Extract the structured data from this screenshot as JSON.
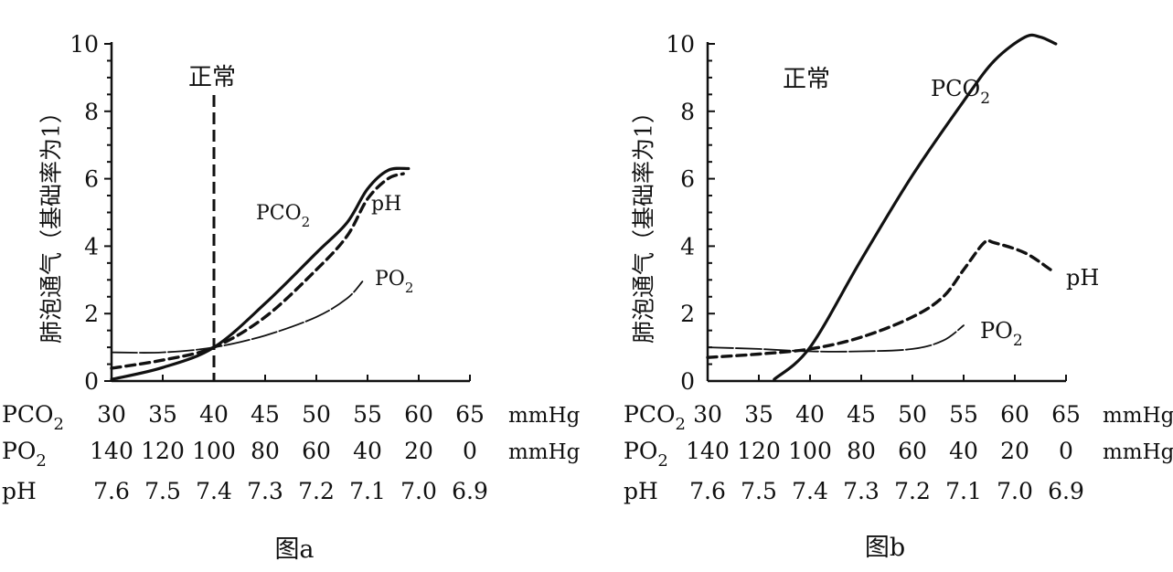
{
  "chart_data": [
    {
      "type": "line",
      "panel_label": "图a",
      "ylabel": "肺泡通气（基础率为1）",
      "ylim": [
        0,
        10
      ],
      "y_ticks": [
        "0",
        "2",
        "4",
        "6",
        "8",
        "10"
      ],
      "x_axis_pco2": {
        "label_main": "PCO",
        "label_sub": "2",
        "ticks": [
          "30",
          "35",
          "40",
          "45",
          "50",
          "55",
          "60",
          "65"
        ],
        "unit": "mmHg"
      },
      "x_axis_po2": {
        "label_main": "PO",
        "label_sub": "2",
        "ticks": [
          "140",
          "120",
          "100",
          "80",
          "60",
          "40",
          "20",
          "0"
        ],
        "unit": "mmHg"
      },
      "x_axis_ph": {
        "label": "pH",
        "ticks": [
          "7.6",
          "7.5",
          "7.4",
          "7.3",
          "7.2",
          "7.1",
          "7.0",
          "6.9"
        ]
      },
      "normal_line": {
        "label": "正常",
        "x_pco2": 40
      },
      "series": [
        {
          "name_main": "PCO",
          "name_sub": "2",
          "style": "solid",
          "points": [
            [
              30,
              0.05
            ],
            [
              35,
              0.4
            ],
            [
              40,
              1.0
            ],
            [
              45,
              2.3
            ],
            [
              50,
              3.8
            ],
            [
              53,
              4.7
            ],
            [
              55,
              5.7
            ],
            [
              57,
              6.25
            ],
            [
              59,
              6.3
            ]
          ]
        },
        {
          "name": "pH",
          "style": "dashed",
          "points": [
            [
              30,
              0.38
            ],
            [
              35,
              0.62
            ],
            [
              40,
              1.0
            ],
            [
              45,
              1.9
            ],
            [
              50,
              3.3
            ],
            [
              53,
              4.3
            ],
            [
              55,
              5.4
            ],
            [
              57,
              6.0
            ],
            [
              58.5,
              6.15
            ]
          ]
        },
        {
          "name_main": "PO",
          "name_sub": "2",
          "style": "thin",
          "points": [
            [
              30,
              0.85
            ],
            [
              35,
              0.85
            ],
            [
              40,
              1.0
            ],
            [
              45,
              1.35
            ],
            [
              50,
              1.9
            ],
            [
              53,
              2.45
            ],
            [
              54.5,
              2.95
            ]
          ]
        }
      ]
    },
    {
      "type": "line",
      "panel_label": "图b",
      "ylabel": "肺泡通气（基础率为1）",
      "ylim": [
        0,
        10
      ],
      "y_ticks": [
        "0",
        "2",
        "4",
        "6",
        "8",
        "10"
      ],
      "x_axis_pco2": {
        "label_main": "PCO",
        "label_sub": "2",
        "ticks": [
          "30",
          "35",
          "40",
          "45",
          "50",
          "55",
          "60",
          "65"
        ],
        "unit": "mmHg"
      },
      "x_axis_po2": {
        "label_main": "PO",
        "label_sub": "2",
        "ticks": [
          "140",
          "120",
          "100",
          "80",
          "60",
          "40",
          "20",
          "0"
        ],
        "unit": "mmHg"
      },
      "x_axis_ph": {
        "label": "pH",
        "ticks": [
          "7.6",
          "7.5",
          "7.4",
          "7.3",
          "7.2",
          "7.1",
          "7.0",
          "6.9"
        ]
      },
      "normal_label": "正常",
      "series": [
        {
          "name_main": "PCO",
          "name_sub": "2",
          "style": "solid",
          "points": [
            [
              36.5,
              0.05
            ],
            [
              40,
              1.0
            ],
            [
              45,
              3.6
            ],
            [
              50,
              6.1
            ],
            [
              55,
              8.3
            ],
            [
              58,
              9.5
            ],
            [
              61,
              10.2
            ],
            [
              62.5,
              10.2
            ],
            [
              64,
              10.0
            ]
          ]
        },
        {
          "name": "pH",
          "style": "dashed",
          "points": [
            [
              30,
              0.7
            ],
            [
              35,
              0.8
            ],
            [
              40,
              0.95
            ],
            [
              45,
              1.3
            ],
            [
              50,
              1.9
            ],
            [
              53,
              2.5
            ],
            [
              55,
              3.3
            ],
            [
              57,
              4.1
            ],
            [
              58,
              4.1
            ],
            [
              61,
              3.8
            ],
            [
              63.5,
              3.3
            ]
          ]
        },
        {
          "name_main": "PO",
          "name_sub": "2",
          "style": "thin",
          "points": [
            [
              30,
              1.0
            ],
            [
              35,
              0.95
            ],
            [
              40,
              0.88
            ],
            [
              45,
              0.88
            ],
            [
              50,
              0.95
            ],
            [
              53,
              1.2
            ],
            [
              55,
              1.65
            ]
          ]
        }
      ]
    }
  ]
}
